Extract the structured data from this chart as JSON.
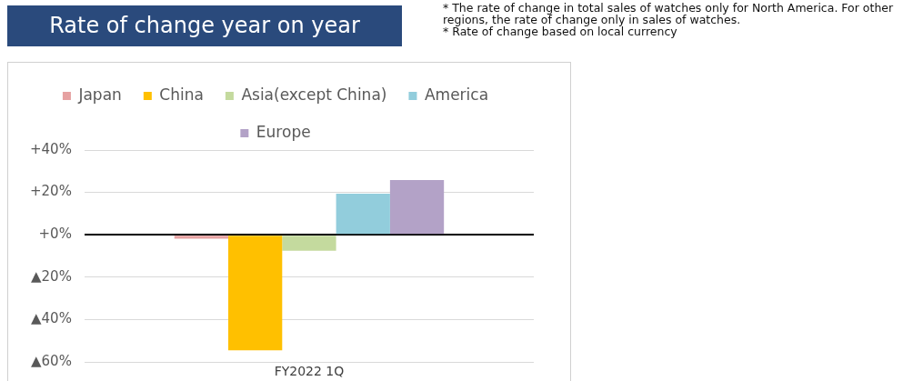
{
  "chart_data": {
    "type": "bar",
    "title": "Rate of change year on year",
    "annotations": [
      "* The rate of change in total sales of watches only for North America. For other regions, the rate of change only in sales of watches.",
      "* Rate of change based on local currency"
    ],
    "categories": [
      "FY2022 1Q"
    ],
    "series": [
      {
        "name": "Japan",
        "color": "#e6a1a1",
        "values": [
          -1.8
        ]
      },
      {
        "name": "China",
        "color": "#ffc000",
        "values": [
          -54.5
        ]
      },
      {
        "name": "Asia(except China)",
        "color": "#c4da9e",
        "values": [
          -7.5
        ]
      },
      {
        "name": "America",
        "color": "#92cddc",
        "values": [
          19.4
        ]
      },
      {
        "name": "Europe",
        "color": "#b3a2c7",
        "values": [
          25.8
        ]
      }
    ],
    "ylim": [
      -60,
      40
    ],
    "yticks": [
      {
        "value": 40,
        "label": "+40%"
      },
      {
        "value": 20,
        "label": "+20%"
      },
      {
        "value": 0,
        "label": "+0%"
      },
      {
        "value": -20,
        "label": "▲20%"
      },
      {
        "value": -40,
        "label": "▲40%"
      },
      {
        "value": -60,
        "label": "▲60%"
      }
    ],
    "grid": "y",
    "legend": "top"
  }
}
